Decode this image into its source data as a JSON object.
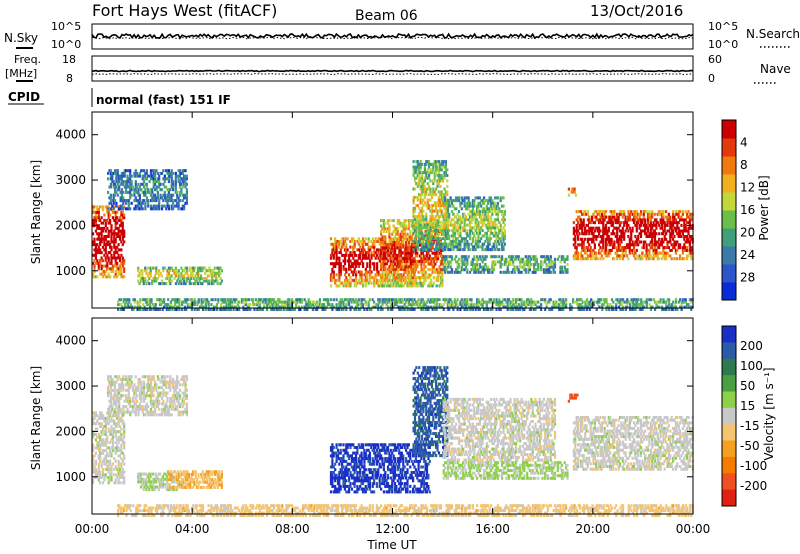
{
  "header": {
    "title": "Fort Hays West (fitACF)",
    "beam": "Beam 06",
    "date": "13/Oct/2016"
  },
  "status_panels": {
    "nsky": {
      "label": "N.Sky",
      "right_label": "N.Search",
      "left_ticks": [
        "10^5",
        "10^0"
      ],
      "right_ticks": [
        "10^5",
        "10^0"
      ]
    },
    "freq": {
      "label_line1": "Freq.",
      "label_line2": "[MHz]",
      "right_label": "Nave",
      "left_ticks": [
        "18",
        "8"
      ],
      "right_ticks": [
        "60",
        "0"
      ]
    },
    "cpid": {
      "label": "CPID",
      "text": "normal (fast) 151 IF"
    }
  },
  "chart_data": [
    {
      "type": "heatmap",
      "quantity": "power",
      "xlabel": "",
      "ylabel": "Slant Range [km]",
      "x_range_hours": [
        0,
        24
      ],
      "y_range_km": [
        180,
        4500
      ],
      "yticks": [
        "1000",
        "2000",
        "3000",
        "4000"
      ],
      "colorbar": {
        "label": "Power [dB]",
        "ticks": [
          "4",
          "8",
          "12",
          "16",
          "20",
          "24",
          "28"
        ],
        "range": [
          0,
          30
        ],
        "colors": [
          "#0a2bd8",
          "#2b55c8",
          "#3b79a8",
          "#3f9f78",
          "#6abf4b",
          "#c2d83a",
          "#f0b020",
          "#f07a10",
          "#e23a0a",
          "#cc0000"
        ]
      },
      "echo_regions": [
        {
          "t": [
            0.0,
            1.3
          ],
          "r": [
            900,
            2500
          ],
          "level": 0.8
        },
        {
          "t": [
            0.6,
            3.8
          ],
          "r": [
            2400,
            3300
          ],
          "level": 0.2
        },
        {
          "t": [
            1.8,
            5.2
          ],
          "r": [
            750,
            1150
          ],
          "level": 0.4
        },
        {
          "t": [
            1.0,
            24.0
          ],
          "r": [
            180,
            450
          ],
          "level": 0.3
        },
        {
          "t": [
            9.5,
            12.9
          ],
          "r": [
            700,
            1800
          ],
          "level": 0.7
        },
        {
          "t": [
            11.5,
            14.0
          ],
          "r": [
            700,
            2200
          ],
          "level": 0.6
        },
        {
          "t": [
            12.8,
            14.2
          ],
          "r": [
            1500,
            3500
          ],
          "level": 0.4
        },
        {
          "t": [
            14.0,
            16.5
          ],
          "r": [
            1500,
            2700
          ],
          "level": 0.35
        },
        {
          "t": [
            14.0,
            19.0
          ],
          "r": [
            1000,
            1400
          ],
          "level": 0.3
        },
        {
          "t": [
            19.2,
            24.0
          ],
          "r": [
            1300,
            2400
          ],
          "level": 0.8
        },
        {
          "t": [
            19.0,
            19.4
          ],
          "r": [
            2700,
            2900
          ],
          "level": 0.6
        }
      ]
    },
    {
      "type": "heatmap",
      "quantity": "velocity",
      "xlabel": "Time UT",
      "ylabel": "Slant Range [km]",
      "x_range_hours": [
        0,
        24
      ],
      "y_range_km": [
        180,
        4500
      ],
      "yticks": [
        "1000",
        "2000",
        "3000",
        "4000"
      ],
      "xticks": [
        "00:00",
        "04:00",
        "08:00",
        "12:00",
        "16:00",
        "20:00",
        "00:00"
      ],
      "colorbar": {
        "label": "Velocity [m s⁻¹]",
        "ticks": [
          "200",
          "100",
          "50",
          "15",
          "-15",
          "-50",
          "-100",
          "-200"
        ],
        "range": [
          -250,
          250
        ],
        "colors": [
          "#1a2fc8",
          "#2a5aa8",
          "#2e7a4e",
          "#4aa040",
          "#8dd14a",
          "#c8c8c8",
          "#f5c46e",
          "#f5a020",
          "#f57c00",
          "#f05020",
          "#e02010"
        ]
      },
      "echo_regions": [
        {
          "t": [
            0.0,
            1.3
          ],
          "r": [
            900,
            2500
          ],
          "velocity": 0
        },
        {
          "t": [
            0.6,
            3.8
          ],
          "r": [
            2400,
            3300
          ],
          "velocity": 0
        },
        {
          "t": [
            1.8,
            3.5
          ],
          "r": [
            750,
            1150
          ],
          "velocity": 20
        },
        {
          "t": [
            3.0,
            5.2
          ],
          "r": [
            800,
            1200
          ],
          "velocity": -60
        },
        {
          "t": [
            1.0,
            24.0
          ],
          "r": [
            180,
            450
          ],
          "velocity": -40
        },
        {
          "t": [
            9.5,
            13.5
          ],
          "r": [
            700,
            1800
          ],
          "velocity": 220
        },
        {
          "t": [
            12.8,
            14.2
          ],
          "r": [
            1500,
            3500
          ],
          "velocity": 180
        },
        {
          "t": [
            14.0,
            18.5
          ],
          "r": [
            1400,
            2800
          ],
          "velocity": 0
        },
        {
          "t": [
            14.0,
            19.0
          ],
          "r": [
            1000,
            1400
          ],
          "velocity": 30
        },
        {
          "t": [
            19.2,
            24.0
          ],
          "r": [
            1200,
            2400
          ],
          "velocity": 0
        },
        {
          "t": [
            19.0,
            19.4
          ],
          "r": [
            2700,
            2900
          ],
          "velocity": -180
        }
      ]
    }
  ]
}
